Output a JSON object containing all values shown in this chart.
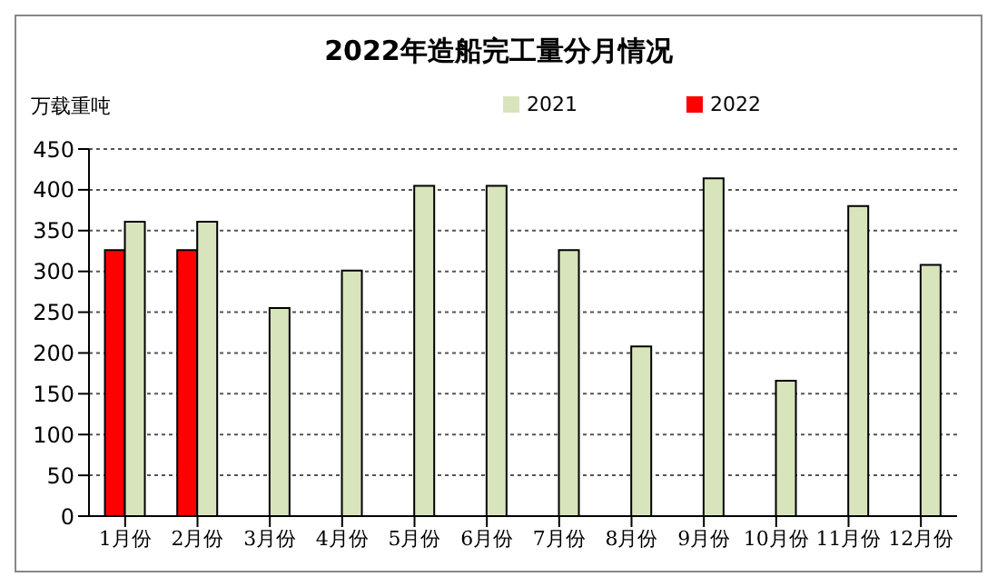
{
  "chart_data": {
    "type": "bar",
    "title": "2022年造船完工量分月情况",
    "ylabel": "万载重吨",
    "categories": [
      "1月份",
      "2月份",
      "3月份",
      "4月份",
      "5月份",
      "6月份",
      "7月份",
      "8月份",
      "9月份",
      "10月份",
      "11月份",
      "12月份"
    ],
    "series": [
      {
        "name": "2022",
        "color": "#ff0000",
        "values": [
          326,
          326,
          null,
          null,
          null,
          null,
          null,
          null,
          null,
          null,
          null,
          null
        ]
      },
      {
        "name": "2021",
        "color": "#d8e4bc",
        "values": [
          361,
          361,
          255,
          301,
          405,
          405,
          326,
          208,
          414,
          166,
          380,
          308
        ]
      }
    ],
    "ylim": [
      0,
      450
    ],
    "yticks": [
      0,
      50,
      100,
      150,
      200,
      250,
      300,
      350,
      400,
      450
    ],
    "grid": "y",
    "legend": "top right"
  }
}
